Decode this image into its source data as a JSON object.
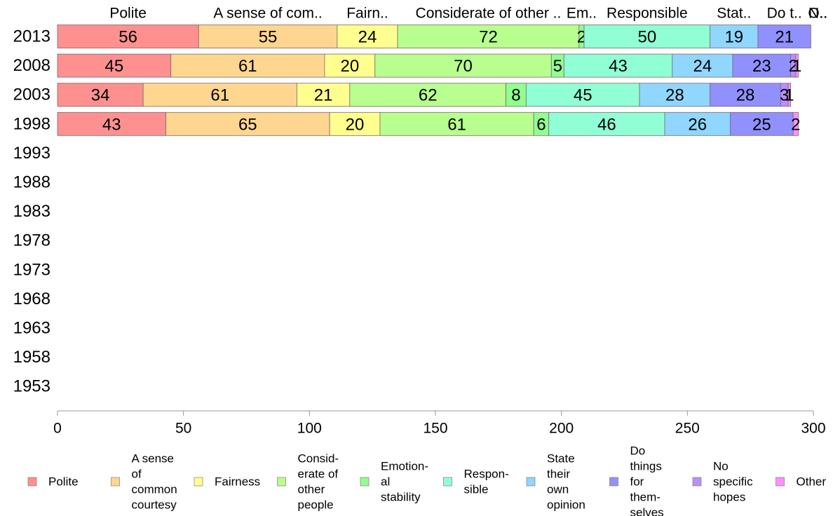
{
  "chart_data": {
    "type": "bar",
    "orientation": "horizontal",
    "stacked": true,
    "categories": [
      "2013",
      "2008",
      "2003",
      "1998",
      "1993",
      "1988",
      "1983",
      "1978",
      "1973",
      "1968",
      "1963",
      "1958",
      "1953"
    ],
    "series": [
      {
        "name": "Polite",
        "top_label": "Polite",
        "legend_lines": [
          "Polite"
        ],
        "color": "#ff9090",
        "values": [
          56,
          45,
          34,
          43,
          null,
          null,
          null,
          null,
          null,
          null,
          null,
          null,
          null
        ]
      },
      {
        "name": "A sense of common courtesy",
        "top_label": "A sense of com..",
        "legend_lines": [
          "A sense",
          "of",
          "common",
          "courtesy"
        ],
        "color": "#ffd690",
        "values": [
          55,
          61,
          61,
          65,
          null,
          null,
          null,
          null,
          null,
          null,
          null,
          null,
          null
        ]
      },
      {
        "name": "Fairness",
        "top_label": "Fairn..",
        "legend_lines": [
          "Fairness"
        ],
        "color": "#ffff90",
        "values": [
          24,
          20,
          21,
          20,
          null,
          null,
          null,
          null,
          null,
          null,
          null,
          null,
          null
        ]
      },
      {
        "name": "Considerate of other people",
        "top_label": "Considerate of other ..",
        "legend_lines": [
          "Consid-",
          "erate of",
          "other",
          "people"
        ],
        "color": "#b8ff90",
        "values": [
          72,
          70,
          62,
          61,
          null,
          null,
          null,
          null,
          null,
          null,
          null,
          null,
          null
        ]
      },
      {
        "name": "Emotional stability",
        "top_label": "Em..",
        "legend_lines": [
          "Emotion-",
          "al",
          "stability"
        ],
        "color": "#90ff90",
        "values": [
          2,
          5,
          8,
          6,
          null,
          null,
          null,
          null,
          null,
          null,
          null,
          null,
          null
        ]
      },
      {
        "name": "Responsible",
        "top_label": "Responsible",
        "legend_lines": [
          "Respon-",
          "sible"
        ],
        "color": "#90ffd6",
        "values": [
          50,
          43,
          45,
          46,
          null,
          null,
          null,
          null,
          null,
          null,
          null,
          null,
          null
        ]
      },
      {
        "name": "State their own opinion",
        "top_label": "Stat..",
        "legend_lines": [
          "State",
          "their",
          "own",
          "opinion"
        ],
        "color": "#90d6ff",
        "values": [
          19,
          24,
          28,
          26,
          null,
          null,
          null,
          null,
          null,
          null,
          null,
          null,
          null
        ]
      },
      {
        "name": "Do things for themselves",
        "top_label": "Do t..",
        "legend_lines": [
          "Do",
          "things",
          "for",
          "them-",
          "selves"
        ],
        "color": "#9090ff",
        "values": [
          21,
          23,
          28,
          25,
          null,
          null,
          null,
          null,
          null,
          null,
          null,
          null,
          null
        ]
      },
      {
        "name": "No specific hopes",
        "top_label": "N..",
        "legend_lines": [
          "No",
          "specific",
          "hopes"
        ],
        "color": "#b890ff",
        "values": [
          0,
          2,
          3,
          0,
          null,
          null,
          null,
          null,
          null,
          null,
          null,
          null,
          null
        ]
      },
      {
        "name": "Other",
        "top_label": "O..",
        "legend_lines": [
          "Other"
        ],
        "color": "#ff90ff",
        "values": [
          0,
          1,
          1,
          2,
          null,
          null,
          null,
          null,
          null,
          null,
          null,
          null,
          null
        ]
      }
    ],
    "xlim": [
      0,
      300
    ],
    "x_ticks": [
      0,
      50,
      100,
      150,
      200,
      250,
      300
    ],
    "title": "",
    "xlabel": "",
    "ylabel": "",
    "grid": false,
    "legend_position": "bottom",
    "data_labels": true
  }
}
